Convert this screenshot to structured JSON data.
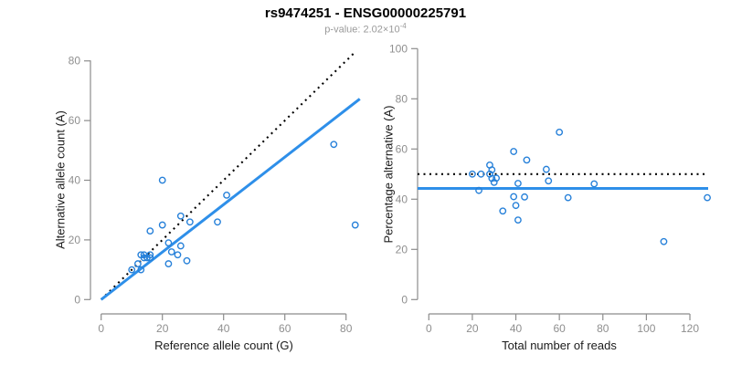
{
  "header": {
    "title": "rs9474251 - ENSG00000225791",
    "subtitle_prefix": "p-value: 2.02×10",
    "subtitle_exponent": "-4"
  },
  "colors": {
    "point": "#2680D9",
    "fit_line": "#2E8FE9",
    "reference_line": "#000000",
    "axis": "#8c8c8c",
    "tick_label": "#8f8f8f"
  },
  "chart_data": [
    {
      "type": "scatter",
      "panel": "left",
      "xlabel": "Reference allele count (G)",
      "ylabel": "Alternative allele count (A)",
      "xticks": [
        0,
        20,
        40,
        60,
        80
      ],
      "yticks": [
        0,
        20,
        40,
        60,
        80
      ],
      "xlim": [
        0,
        86
      ],
      "ylim": [
        0,
        83
      ],
      "x": [
        10,
        12,
        13,
        14,
        14,
        15,
        16,
        16,
        13,
        22,
        16,
        20,
        26,
        29,
        22,
        23,
        26,
        38,
        25,
        28,
        20,
        41,
        83,
        76
      ],
      "y": [
        10,
        12,
        15,
        15,
        14,
        14,
        15,
        14,
        10,
        12,
        23,
        25,
        28,
        26,
        19,
        16,
        18,
        26,
        15,
        13,
        40,
        35,
        25,
        52
      ],
      "identity_line": {
        "style": "dotted",
        "slope": 1,
        "intercept": 0,
        "x_end": 83.2
      },
      "fit_line": {
        "style": "solid",
        "slope": 0.796,
        "intercept": 0,
        "x_end": 84.5
      },
      "grid": false
    },
    {
      "type": "scatter",
      "panel": "right",
      "xlabel": "Total number of reads",
      "ylabel": "Percentage alternative (A)",
      "xticks": [
        0,
        20,
        40,
        60,
        80,
        100,
        120
      ],
      "yticks": [
        0,
        20,
        40,
        60,
        80,
        100
      ],
      "xlim": [
        0,
        134
      ],
      "ylim": [
        0,
        104
      ],
      "x": [
        20,
        24,
        28,
        29,
        28,
        29,
        31,
        30,
        23,
        34,
        39,
        45,
        54,
        55,
        41,
        39,
        44,
        64,
        40,
        41,
        60,
        76,
        108,
        128
      ],
      "y": [
        50,
        50,
        53.6,
        51.7,
        50,
        48.3,
        48.4,
        46.7,
        43.5,
        35.3,
        59,
        55.6,
        51.9,
        47.3,
        46.3,
        41,
        40.9,
        40.6,
        37.5,
        31.7,
        66.7,
        46.1,
        23.1,
        40.6
      ],
      "null_line": {
        "style": "dotted",
        "y": 50
      },
      "mean_line": {
        "style": "solid",
        "y": 44.3
      },
      "grid": false
    }
  ]
}
